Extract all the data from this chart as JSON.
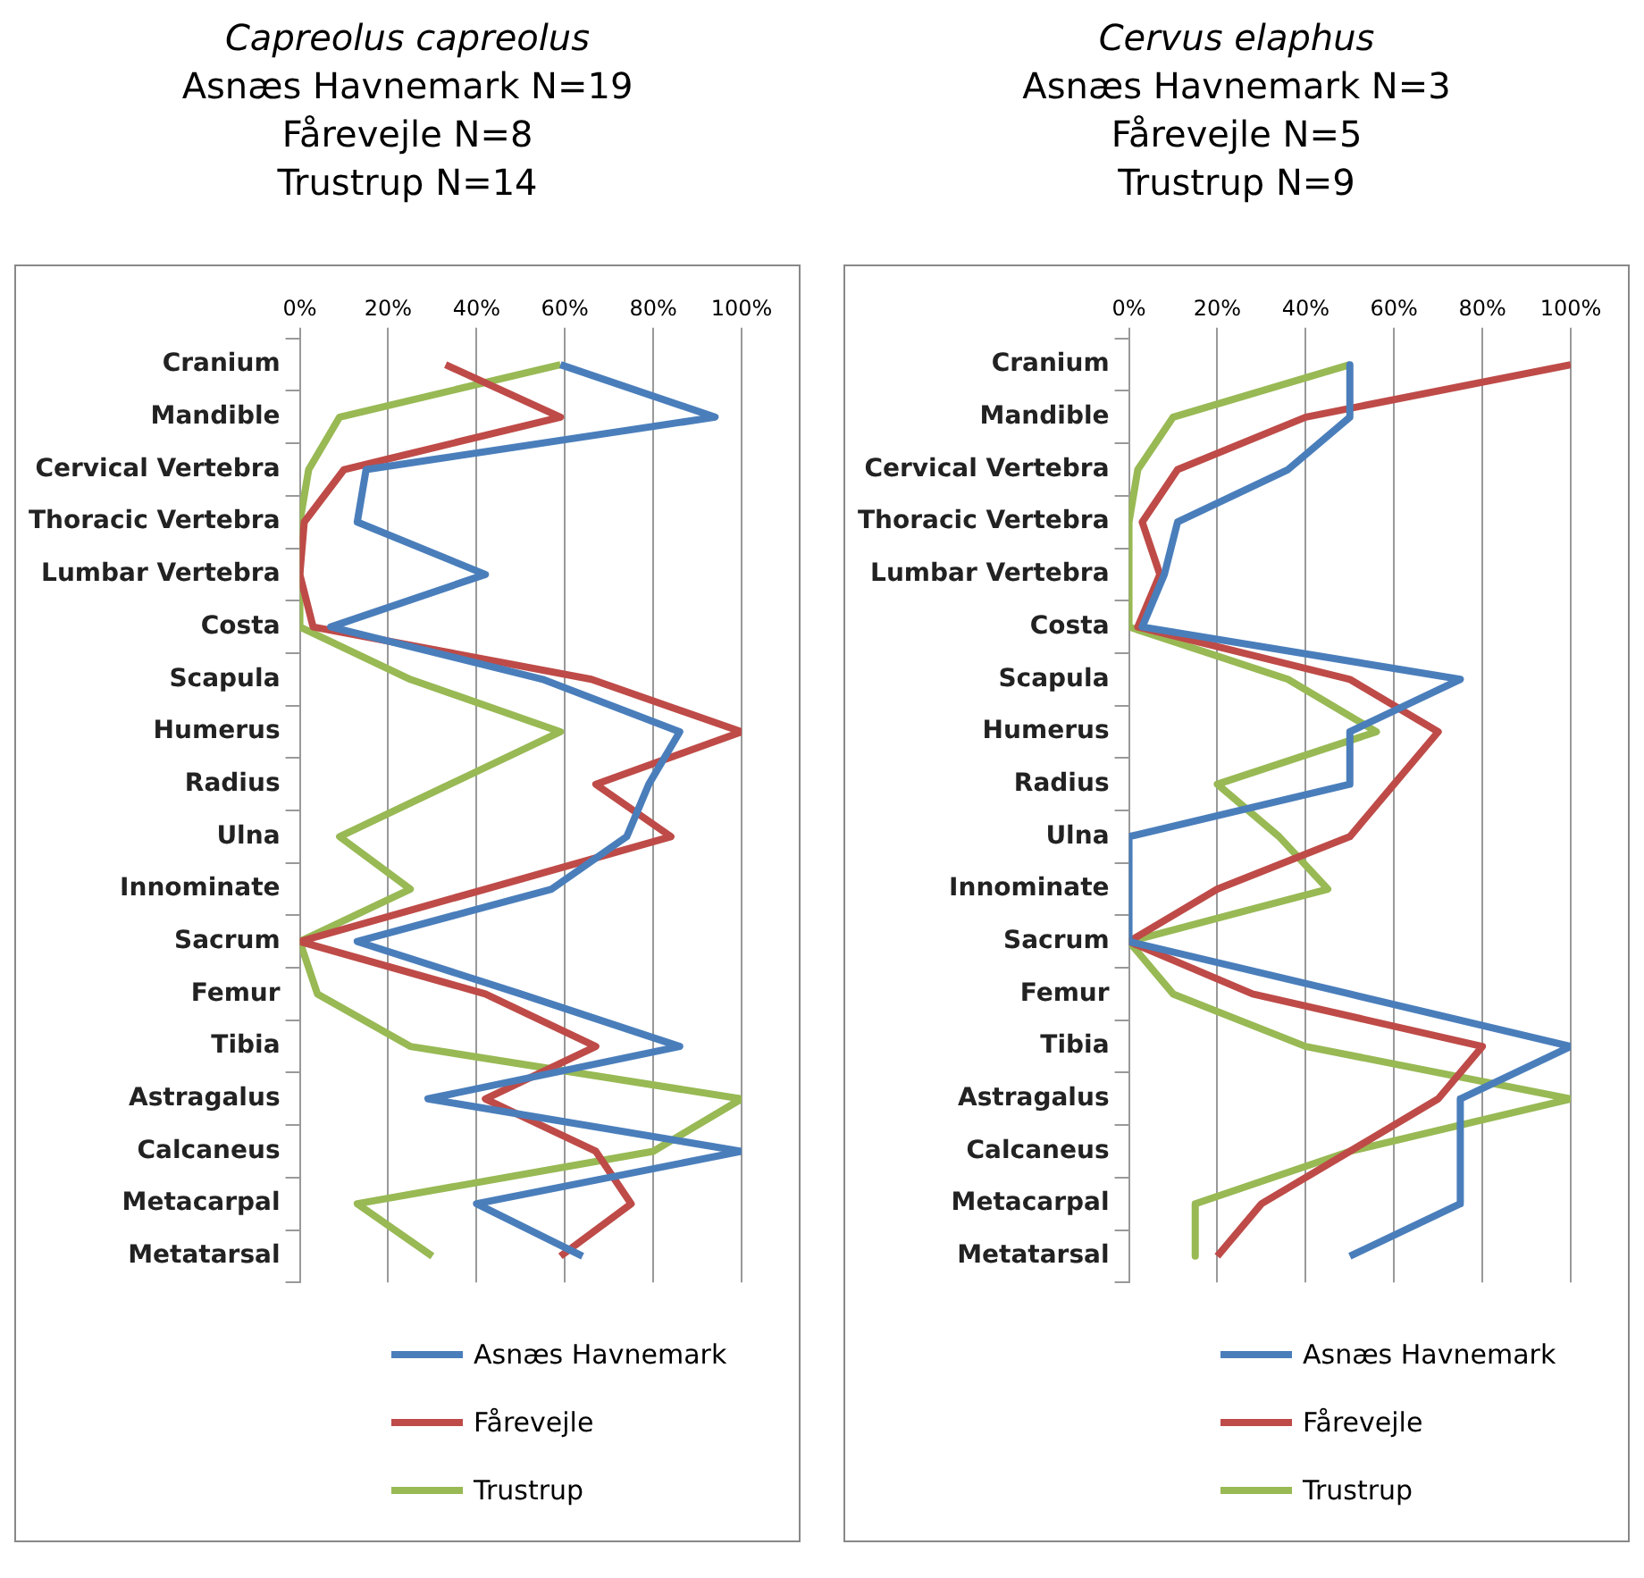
{
  "chart_data": [
    {
      "type": "line",
      "title": "Capreolus capreolus",
      "subtitle": "Asnæs Havnemark N=19\nFårevejle N=8\nTrustrup N=14",
      "orientation": "horizontal",
      "categories": [
        "Cranium",
        "Mandible",
        "Cervical Vertebra",
        "Thoracic Vertebra",
        "Lumbar Vertebra",
        "Costa",
        "Scapula",
        "Humerus",
        "Radius",
        "Ulna",
        "Innominate",
        "Sacrum",
        "Femur",
        "Tibia",
        "Astragalus",
        "Calcaneus",
        "Metacarpal",
        "Metatarsal"
      ],
      "series": [
        {
          "name": "Asnæs Havnemark",
          "color": "#4a7ebb",
          "values": [
            59,
            94,
            15,
            13,
            42,
            7,
            55,
            86,
            79,
            74,
            57,
            13,
            50,
            86,
            29,
            100,
            40,
            64
          ]
        },
        {
          "name": "Fårevejle",
          "color": "#be4b48",
          "values": [
            33,
            59,
            10,
            1,
            0,
            3,
            66,
            100,
            67,
            84,
            42,
            0,
            42,
            67,
            42,
            67,
            75,
            59
          ]
        },
        {
          "name": "Trustrup",
          "color": "#98b954",
          "values": [
            59,
            9,
            2,
            0,
            0,
            0,
            25,
            59,
            34,
            9,
            25,
            0,
            4,
            25,
            100,
            80,
            13,
            30
          ]
        }
      ],
      "xlim": [
        0,
        100
      ],
      "xticks": [
        {
          "value": 0,
          "label": "0%"
        },
        {
          "value": 20,
          "label": "20%"
        },
        {
          "value": 40,
          "label": "40%"
        },
        {
          "value": 60,
          "label": "60%"
        },
        {
          "value": 80,
          "label": "80%"
        },
        {
          "value": 100,
          "label": "100%"
        }
      ],
      "grid": "x",
      "legend": "bottom",
      "marker": "none",
      "line_style": "solid"
    },
    {
      "type": "line",
      "title": "Cervus elaphus",
      "subtitle": "Asnæs Havnemark N=3\nFårevejle N=5\nTrustrup N=9",
      "orientation": "horizontal",
      "categories": [
        "Cranium",
        "Mandible",
        "Cervical Vertebra",
        "Thoracic Vertebra",
        "Lumbar Vertebra",
        "Costa",
        "Scapula",
        "Humerus",
        "Radius",
        "Ulna",
        "Innominate",
        "Sacrum",
        "Femur",
        "Tibia",
        "Astragalus",
        "Calcaneus",
        "Metacarpal",
        "Metatarsal"
      ],
      "series": [
        {
          "name": "Asnæs Havnemark",
          "color": "#4a7ebb",
          "values": [
            50,
            50,
            36,
            11,
            8,
            3,
            75,
            50,
            50,
            0,
            0,
            0,
            50,
            100,
            75,
            75,
            75,
            50
          ]
        },
        {
          "name": "Fårevejle",
          "color": "#be4b48",
          "values": [
            100,
            40,
            11,
            3,
            7,
            2,
            50,
            70,
            60,
            50,
            20,
            0,
            28,
            80,
            70,
            50,
            30,
            20
          ]
        },
        {
          "name": "Trustrup",
          "color": "#98b954",
          "values": [
            50,
            10,
            2,
            0,
            0,
            0,
            36,
            56,
            20,
            34,
            45,
            0,
            10,
            40,
            100,
            50,
            15,
            15
          ]
        }
      ],
      "xlim": [
        0,
        100
      ],
      "xticks": [
        {
          "value": 0,
          "label": "0%"
        },
        {
          "value": 20,
          "label": "20%"
        },
        {
          "value": 40,
          "label": "40%"
        },
        {
          "value": 60,
          "label": "60%"
        },
        {
          "value": 80,
          "label": "80%"
        },
        {
          "value": 100,
          "label": "100%"
        }
      ],
      "grid": "x",
      "legend": "bottom",
      "marker": "none",
      "line_style": "solid"
    }
  ]
}
